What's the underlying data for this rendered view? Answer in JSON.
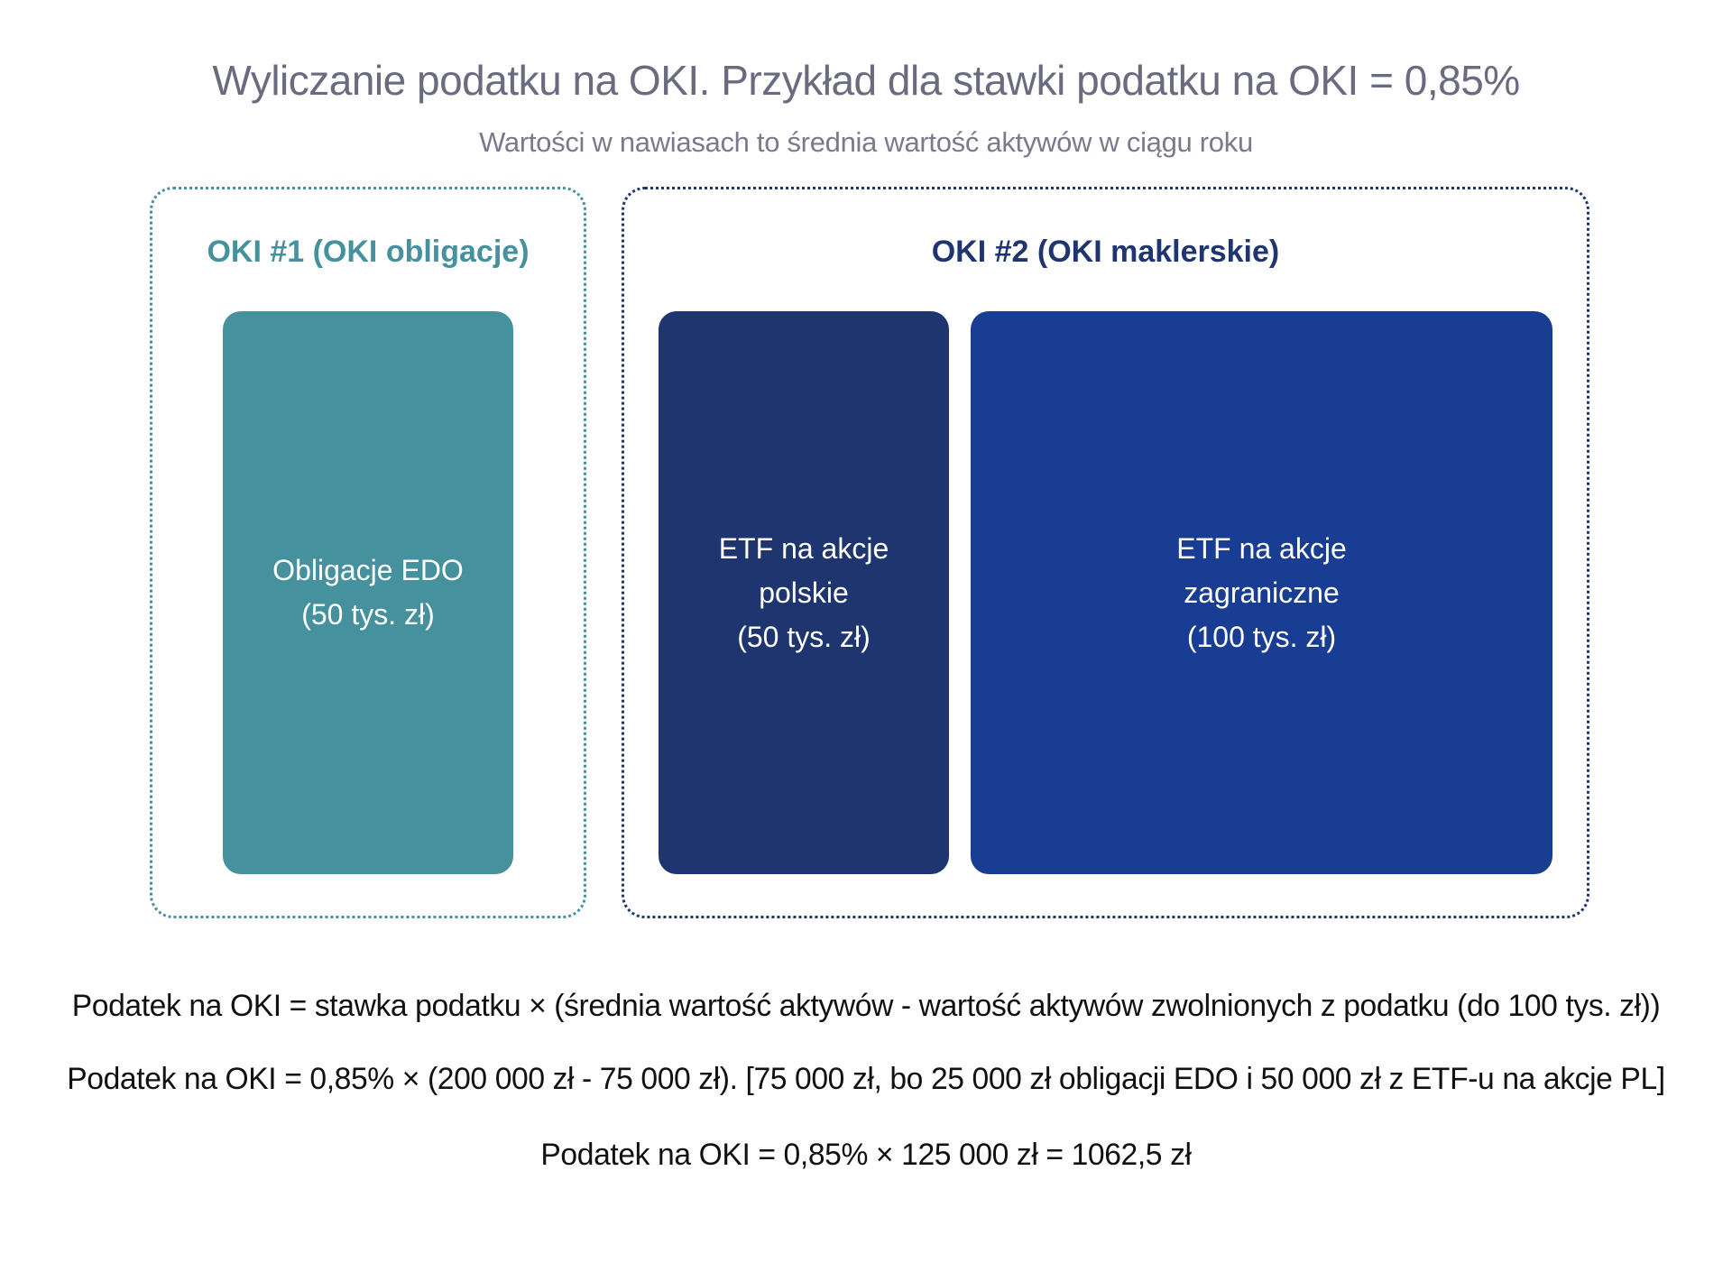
{
  "title": "Wyliczanie podatku na OKI. Przykład dla stawki podatku na OKI = 0,85%",
  "subtitle": "Wartości w nawiasach to średnia wartość aktywów w ciągu roku",
  "groups": [
    {
      "label": "OKI #1 (OKI obligacje)",
      "color": "#45919e",
      "blocks": [
        {
          "lines": [
            "Obligacje EDO",
            "(50 tys. zł)"
          ],
          "color": "#45919e"
        }
      ]
    },
    {
      "label": "OKI #2 (OKI maklerskie)",
      "color": "#1e3570",
      "blocks": [
        {
          "lines": [
            "ETF na akcje",
            "polskie",
            "(50 tys. zł)"
          ],
          "color": "#1e3570"
        },
        {
          "lines": [
            "ETF na akcje",
            "zagraniczne",
            "(100 tys. zł)"
          ],
          "color": "#183d93"
        }
      ]
    }
  ],
  "formulas": [
    "Podatek na OKI = stawka podatku × (średnia wartość aktywów - wartość aktywów zwolnionych z podatku (do 100 tys. zł))",
    "Podatek na OKI = 0,85% × (200 000 zł - 75 000 zł). [75 000 zł, bo 25 000 zł obligacji EDO i 50 000 zł z ETF-u na akcje PL]",
    "Podatek na OKI = 0,85% × 125 000 zł = 1062,5 zł"
  ]
}
